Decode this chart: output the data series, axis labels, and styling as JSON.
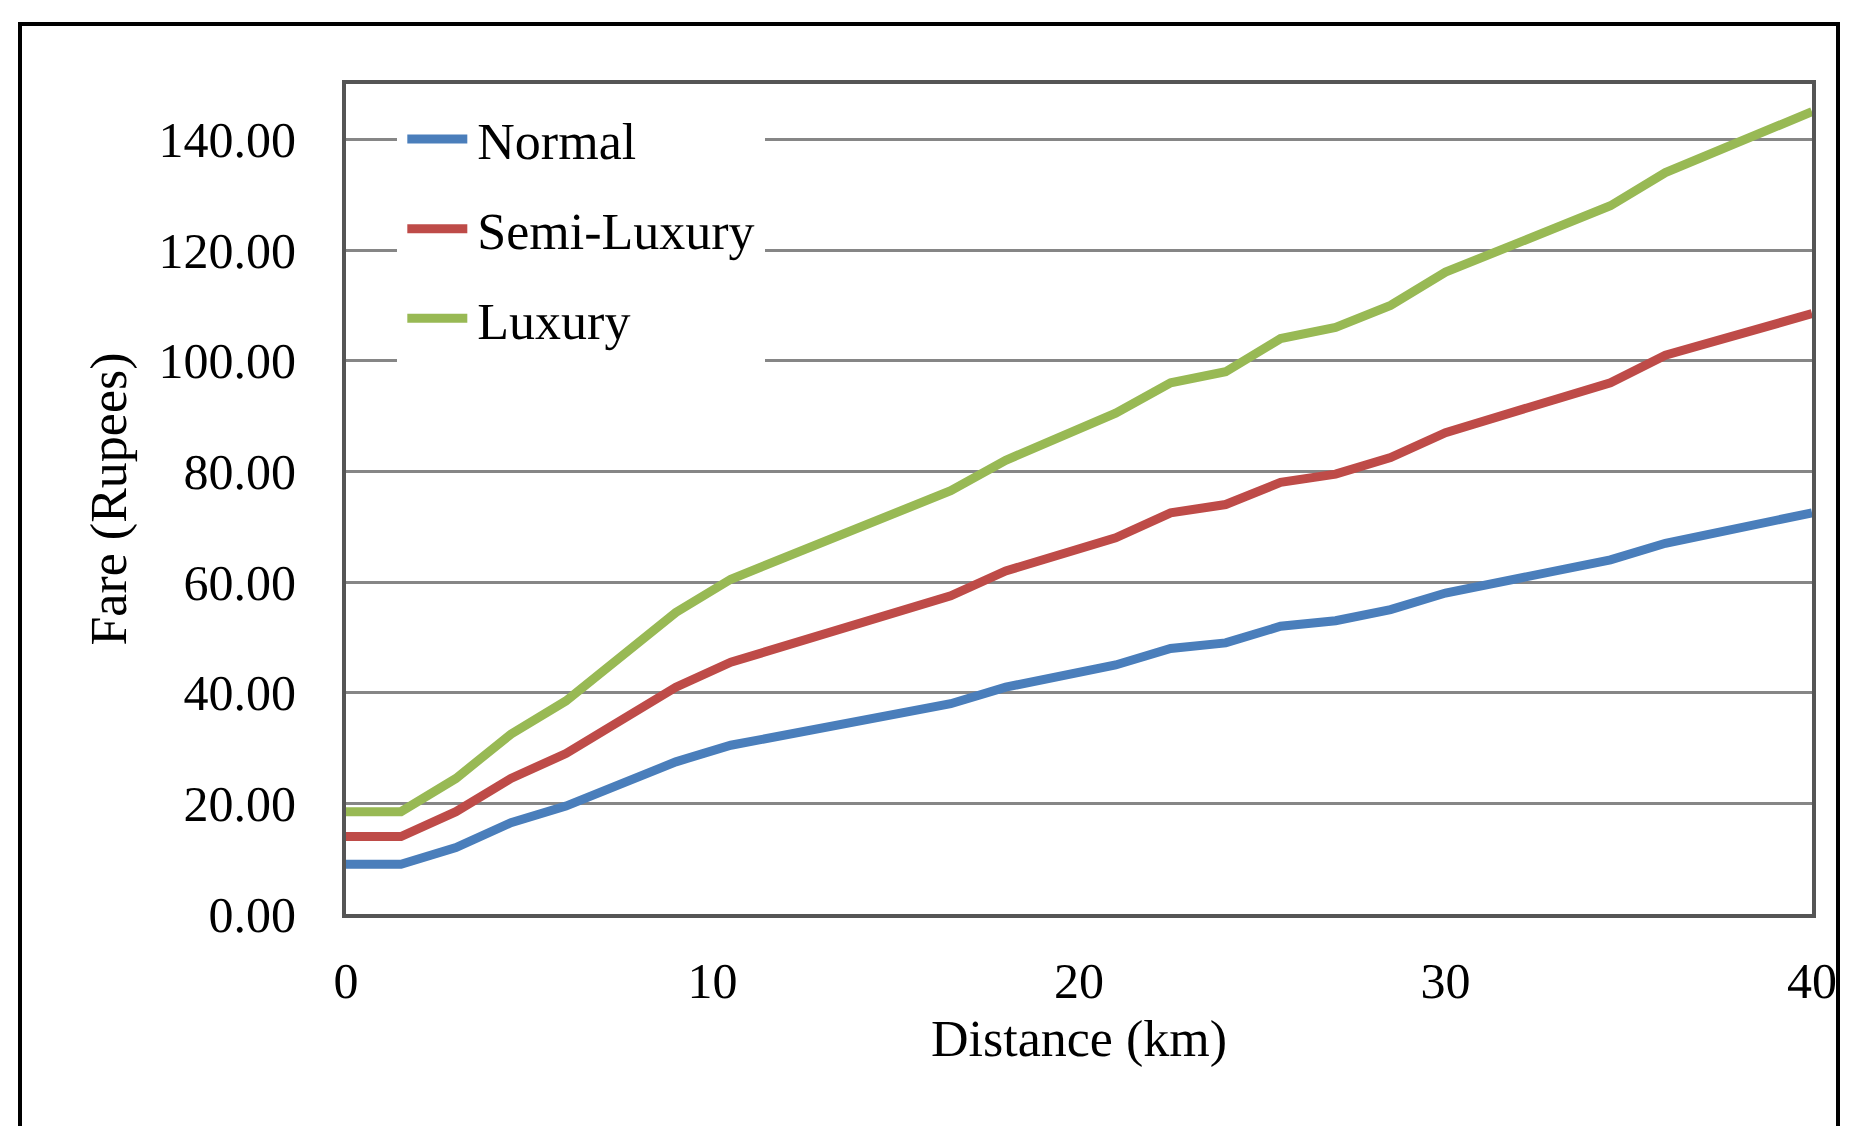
{
  "chart_data": {
    "type": "line",
    "xlabel": "Distance (km)",
    "ylabel": "Fare (Rupees)",
    "x": [
      0,
      1.5,
      3,
      4.5,
      6,
      9,
      10.5,
      16.5,
      18,
      21,
      22.5,
      24,
      25.5,
      27,
      28.5,
      30,
      34.5,
      36,
      40
    ],
    "series": [
      {
        "name": "Normal",
        "color": "#4a7ebb",
        "values": [
          9,
          9,
          12,
          16.5,
          19.5,
          27.5,
          30.5,
          38,
          41,
          45,
          48,
          49,
          52,
          53,
          55,
          58,
          64,
          67,
          72.5
        ]
      },
      {
        "name": "Semi-Luxury",
        "color": "#be4b48",
        "values": [
          14,
          14,
          18.5,
          24.5,
          29,
          41,
          45.5,
          57.5,
          62,
          68,
          72.5,
          74,
          78,
          79.5,
          82.5,
          87,
          96,
          101,
          108.5
        ]
      },
      {
        "name": "Luxury",
        "color": "#98b954",
        "values": [
          18.5,
          18.5,
          24.5,
          32.5,
          38.5,
          54.5,
          60.5,
          76.5,
          82,
          90.5,
          96,
          98,
          104,
          106,
          110,
          116,
          128,
          134,
          145
        ]
      }
    ],
    "xlim": [
      0,
      40
    ],
    "xticks": [
      0,
      10,
      20,
      30,
      40
    ],
    "ylim": [
      0,
      150
    ],
    "yticks": [
      {
        "value": 0,
        "label": "0.00"
      },
      {
        "value": 20,
        "label": "20.00"
      },
      {
        "value": 40,
        "label": "40.00"
      },
      {
        "value": 60,
        "label": "60.00"
      },
      {
        "value": 80,
        "label": "80.00"
      },
      {
        "value": 100,
        "label": "100.00"
      },
      {
        "value": 120,
        "label": "120.00"
      },
      {
        "value": 140,
        "label": "140.00"
      }
    ],
    "grid": "y",
    "legend": "top left"
  }
}
